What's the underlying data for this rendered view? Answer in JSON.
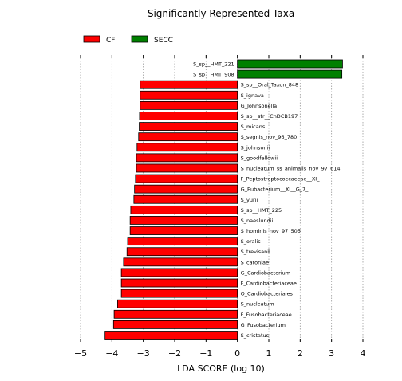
{
  "chart_data": {
    "type": "bar",
    "orientation": "horizontal",
    "title": "Significantly Represented Taxa",
    "xlabel": "LDA SCORE (log 10)",
    "ylabel": "",
    "xlim": [
      -5,
      4
    ],
    "xticks": [
      "−5",
      "−4",
      "−3",
      "−2",
      "−1",
      "0",
      "1",
      "2",
      "3",
      "4"
    ],
    "grid": true,
    "legend_position": "top-left",
    "series": [
      {
        "name": "CF",
        "color": "#ff0000"
      },
      {
        "name": "SECC",
        "color": "#008000"
      }
    ],
    "bars": [
      {
        "label": "S_sp__HMT_221",
        "value": 3.35,
        "group": "SECC"
      },
      {
        "label": "S_sp__HMT_908",
        "value": 3.33,
        "group": "SECC"
      },
      {
        "label": "S_sp__Oral_Taxon_848",
        "value": -3.1,
        "group": "CF"
      },
      {
        "label": "S_ignava",
        "value": -3.1,
        "group": "CF"
      },
      {
        "label": "G_Johnsonella",
        "value": -3.1,
        "group": "CF"
      },
      {
        "label": "S_sp__str__ChDCB197",
        "value": -3.12,
        "group": "CF"
      },
      {
        "label": "S_micans",
        "value": -3.13,
        "group": "CF"
      },
      {
        "label": "S_segnis_nov_96_780",
        "value": -3.15,
        "group": "CF"
      },
      {
        "label": "S_johnsonii",
        "value": -3.2,
        "group": "CF"
      },
      {
        "label": "S_goodfellowii",
        "value": -3.22,
        "group": "CF"
      },
      {
        "label": "S_nucleatum_ss_animalis_nov_97_614",
        "value": -3.22,
        "group": "CF"
      },
      {
        "label": "F_Peptostreptococcaceae__XI_",
        "value": -3.25,
        "group": "CF"
      },
      {
        "label": "G_Eubacterium__XI__G_7_",
        "value": -3.28,
        "group": "CF"
      },
      {
        "label": "S_yurii",
        "value": -3.3,
        "group": "CF"
      },
      {
        "label": "S_sp__HMT_225",
        "value": -3.4,
        "group": "CF"
      },
      {
        "label": "S_naeslundii",
        "value": -3.42,
        "group": "CF"
      },
      {
        "label": "S_hominis_nov_97_505",
        "value": -3.42,
        "group": "CF"
      },
      {
        "label": "S_oralis",
        "value": -3.5,
        "group": "CF"
      },
      {
        "label": "S_trevisanii",
        "value": -3.52,
        "group": "CF"
      },
      {
        "label": "S_catoniae",
        "value": -3.63,
        "group": "CF"
      },
      {
        "label": "G_Cardiobacterium",
        "value": -3.7,
        "group": "CF"
      },
      {
        "label": "F_Cardiobacteriaceae",
        "value": -3.7,
        "group": "CF"
      },
      {
        "label": "O_Cardiobacteriales",
        "value": -3.7,
        "group": "CF"
      },
      {
        "label": "S_nucleatum",
        "value": -3.82,
        "group": "CF"
      },
      {
        "label": "F_Fusobacteriaceae",
        "value": -3.93,
        "group": "CF"
      },
      {
        "label": "G_Fusobacterium",
        "value": -3.95,
        "group": "CF"
      },
      {
        "label": "S_cristatus",
        "value": -4.22,
        "group": "CF"
      }
    ]
  }
}
